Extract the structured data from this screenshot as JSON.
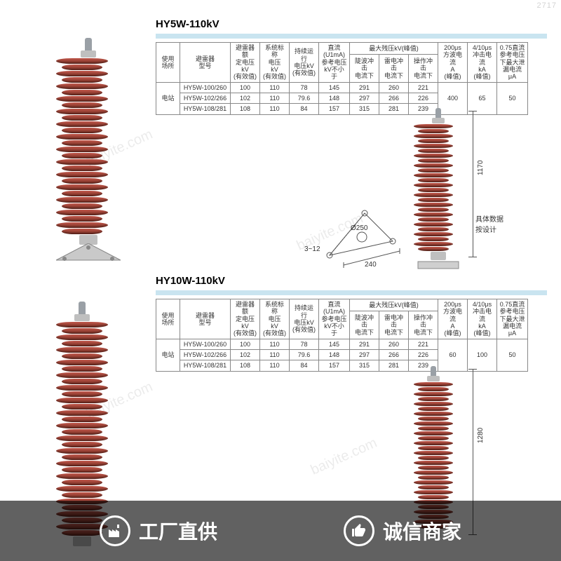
{
  "watermark_top_right": "2717",
  "watermark_diag": "baiyite.com",
  "footer": {
    "left": {
      "text": "工厂直供"
    },
    "right": {
      "text": "诚信商家"
    }
  },
  "sections": [
    {
      "title": "HY5W-110kV",
      "arrester_color": "#9c4a3b",
      "shed_count_main": 28,
      "shed_count_dim": 26,
      "table": {
        "headers": {
          "usage": "使用\n场所",
          "model": "避雷器\n型号",
          "rated": "避雷器额\n定电压\nkV\n(有效值)",
          "system": "系统标称\n电压\nkV\n(有效值)",
          "cont": "持续运行\n电压kV\n(有效值)",
          "dc": "直流\n(U1mA)\n参考电压\nkV不小于",
          "resid_group": "最大残压kV(峰值)",
          "resid_sub": [
            "陡波冲击\n电流下",
            "雷电冲击\n电流下",
            "操作冲击\n电流下"
          ],
          "c200": "200μs\n方波电流\nA\n(峰值)",
          "c410": "4/10μs\n冲击电流\nkA\n(峰值)",
          "leak": "0.75直流\n参考电压\n下最大泄\n漏电流μA"
        },
        "usage_value": "电站",
        "rows": [
          {
            "model": "HY5W-100/260",
            "rated": "100",
            "system": "110",
            "cont": "78",
            "dc": "145",
            "r1": "291",
            "r2": "260",
            "r3": "221"
          },
          {
            "model": "HY5W-102/266",
            "rated": "102",
            "system": "110",
            "cont": "79.6",
            "dc": "148",
            "r1": "297",
            "r2": "266",
            "r3": "226"
          },
          {
            "model": "HY5W-108/281",
            "rated": "108",
            "system": "110",
            "cont": "84",
            "dc": "157",
            "r1": "315",
            "r2": "281",
            "r3": "239"
          }
        ],
        "tail": {
          "c200": "400",
          "c410": "65",
          "leak": "50"
        }
      },
      "dimensions": {
        "height": "1170",
        "base_diag": "Ø250",
        "base_width": "240",
        "thickness": "3~12",
        "side_note": "具体数据\n按设计"
      }
    },
    {
      "title": "HY10W-110kV",
      "arrester_color": "#9c4a3b",
      "shed_count_main": 34,
      "shed_count_dim": 30,
      "table": {
        "headers": {
          "usage": "使用\n场所",
          "model": "避雷器\n型号",
          "rated": "避雷器额\n定电压\nkV\n(有效值)",
          "system": "系统标称\n电压\nkV\n(有效值)",
          "cont": "持续运行\n电压kV\n(有效值)",
          "dc": "直流\n(U1mA)\n参考电压\nkV不小于",
          "resid_group": "最大残压kV(峰值)",
          "resid_sub": [
            "陡波冲击\n电流下",
            "雷电冲击\n电流下",
            "操作冲击\n电流下"
          ],
          "c200": "200μs\n方波电流\nA\n(峰值)",
          "c410": "4/10μs\n冲击电流\nkA\n(峰值)",
          "leak": "0.75直流\n参考电压\n下最大泄\n漏电流μA"
        },
        "usage_value": "电站",
        "rows": [
          {
            "model": "HY5W-100/260",
            "rated": "100",
            "system": "110",
            "cont": "78",
            "dc": "145",
            "r1": "291",
            "r2": "260",
            "r3": "221"
          },
          {
            "model": "HY5W-102/266",
            "rated": "102",
            "system": "110",
            "cont": "79.6",
            "dc": "148",
            "r1": "297",
            "r2": "266",
            "r3": "226"
          },
          {
            "model": "HY5W-108/281",
            "rated": "108",
            "system": "110",
            "cont": "84",
            "dc": "157",
            "r1": "315",
            "r2": "281",
            "r3": "239"
          }
        ],
        "tail": {
          "c200": "60",
          "c410": "100",
          "leak": "50"
        }
      },
      "dimensions": {
        "height": "1280"
      }
    }
  ]
}
